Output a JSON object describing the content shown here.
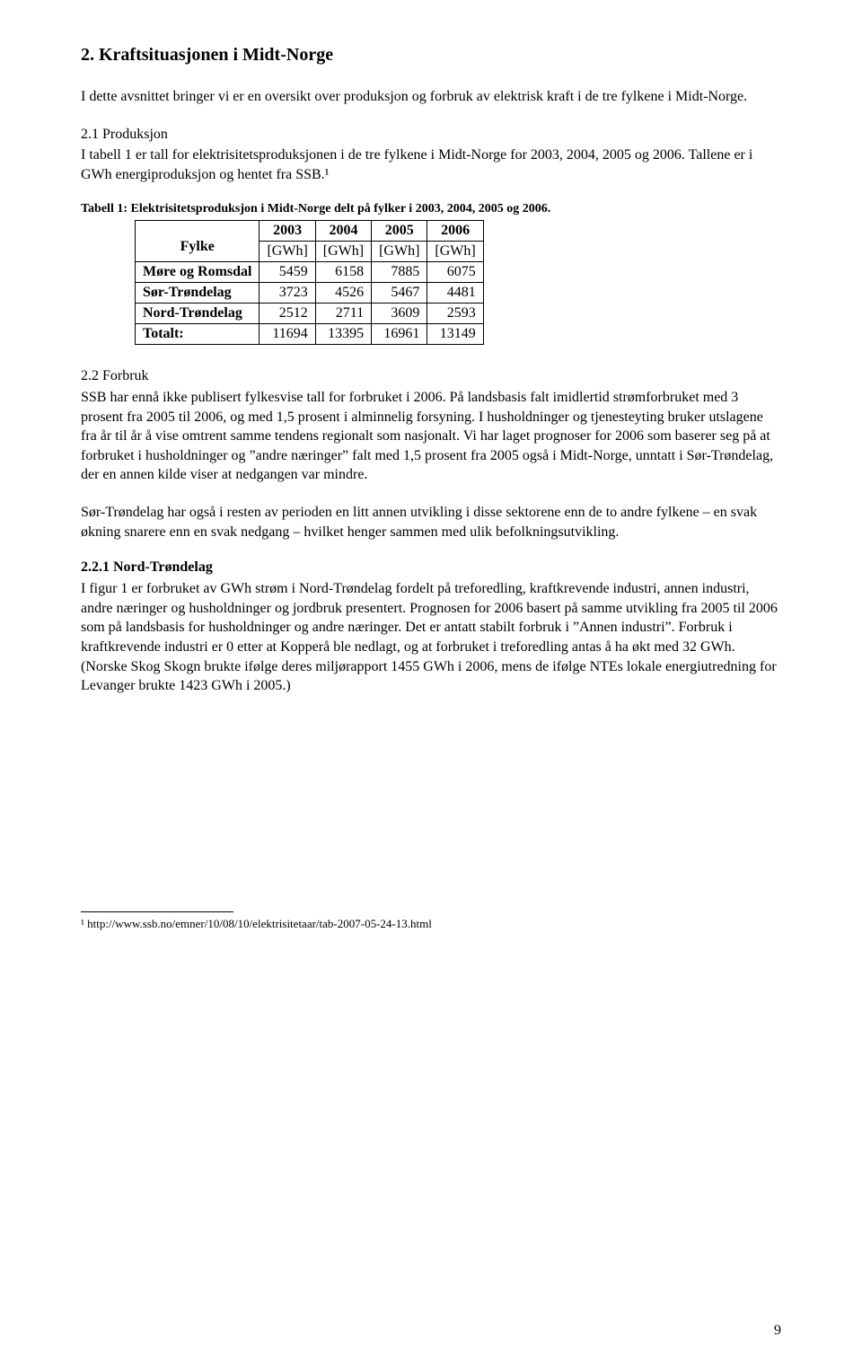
{
  "section": {
    "title": "2. Kraftsituasjonen i Midt-Norge",
    "intro": "I dette avsnittet bringer vi er en oversikt over produksjon og forbruk av elektrisk kraft i de tre fylkene i Midt-Norge."
  },
  "produksjon": {
    "heading": "2.1 Produksjon",
    "body": "I tabell 1 er tall for elektrisitetsproduksjonen i de tre fylkene i Midt-Norge for 2003, 2004, 2005 og 2006. Tallene er i GWh energiproduksjon og hentet fra SSB.¹"
  },
  "table1": {
    "caption": "Tabell 1: Elektrisitetsproduksjon i Midt-Norge delt på fylker i 2003, 2004, 2005 og 2006.",
    "fylke_label": "Fylke",
    "years": [
      "2003",
      "2004",
      "2005",
      "2006"
    ],
    "unit": "[GWh]",
    "rows": [
      {
        "name": "Møre og Romsdal",
        "vals": [
          "5459",
          "6158",
          "7885",
          "6075"
        ],
        "bold": true
      },
      {
        "name": "Sør-Trøndelag",
        "vals": [
          "3723",
          "4526",
          "5467",
          "4481"
        ],
        "bold": true
      },
      {
        "name": "Nord-Trøndelag",
        "vals": [
          "2512",
          "2711",
          "3609",
          "2593"
        ],
        "bold": true
      },
      {
        "name": "Totalt:",
        "vals": [
          "11694",
          "13395",
          "16961",
          "13149"
        ],
        "bold": true
      }
    ]
  },
  "forbruk": {
    "heading": "2.2 Forbruk",
    "p1": "SSB har ennå ikke publisert fylkesvise tall for forbruket i 2006. På landsbasis falt imidlertid strømforbruket med 3 prosent fra 2005 til 2006, og med 1,5 prosent i alminnelig forsyning. I husholdninger og tjenesteyting bruker utslagene fra år til år å vise omtrent samme tendens regionalt som nasjonalt. Vi har laget prognoser for 2006 som baserer seg på at forbruket i husholdninger og ”andre næringer” falt med 1,5 prosent fra 2005 også i Midt-Norge, unntatt i Sør-Trøndelag, der en annen kilde viser at nedgangen var mindre.",
    "p2": "Sør-Trøndelag har også i resten av perioden en litt annen utvikling i disse sektorene enn de to andre fylkene – en svak økning snarere enn en svak nedgang – hvilket henger sammen med ulik befolkningsutvikling."
  },
  "nordtrondelag": {
    "heading": "2.2.1 Nord-Trøndelag",
    "body": "I figur 1 er forbruket av GWh strøm i Nord-Trøndelag fordelt på treforedling, kraftkrevende industri, annen industri, andre næringer og husholdninger og jordbruk presentert. Prognosen for 2006 basert på samme utvikling fra 2005 til 2006 som på landsbasis for husholdninger og andre næringer. Det er antatt stabilt forbruk i ”Annen industri”. Forbruk i kraftkrevende industri er 0 etter at Kopperå ble nedlagt, og at forbruket i treforedling antas å ha økt med 32 GWh. (Norske Skog Skogn brukte ifølge deres miljørapport 1455 GWh i 2006, mens de ifølge NTEs lokale energiutredning for Levanger brukte 1423 GWh i 2005.)"
  },
  "footnote": {
    "text": "¹ http://www.ssb.no/emner/10/08/10/elektrisitetaar/tab-2007-05-24-13.html"
  },
  "page_number": "9"
}
